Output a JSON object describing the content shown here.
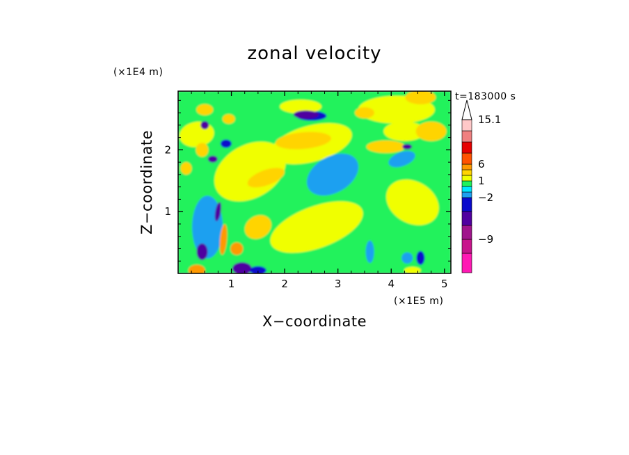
{
  "chart_data": {
    "type": "heatmap",
    "title": "zonal velocity",
    "xlabel": "X−coordinate",
    "ylabel": "Z−coordinate",
    "x_unit": "(×1E5 m)",
    "y_unit": "(×1E4 m)",
    "time_label": "t=183000 s",
    "xlim": [
      0,
      5.12
    ],
    "ylim": [
      0,
      2.95
    ],
    "x_ticks": [
      "1",
      "2",
      "3",
      "4",
      "5"
    ],
    "y_ticks": [
      "1",
      "2"
    ],
    "colorbar": {
      "levels": [
        -15,
        -12,
        -9,
        -6,
        -3,
        -2,
        -1,
        0,
        1,
        2,
        3,
        6,
        9,
        12,
        15.1
      ],
      "colors": [
        "#ff19b4",
        "#c8148c",
        "#a0148c",
        "#5000a0",
        "#0a0acc",
        "#1ea0f0",
        "#00e6ff",
        "#20f25c",
        "#f0ff00",
        "#ffd400",
        "#ff9900",
        "#ff5200",
        "#e60000",
        "#f08080",
        "#ffc8c8"
      ],
      "extend": "max",
      "tick_labels": [
        "15.1",
        "6",
        "1",
        "−2",
        "−9"
      ],
      "tick_values": [
        15.1,
        6,
        1,
        -2,
        -9
      ]
    },
    "background_level": 0,
    "features": [
      {
        "x": 3.5,
        "z": 0.6,
        "value": 0.5
      },
      {
        "x": 1.35,
        "z": 1.65,
        "value": 1.5
      },
      {
        "x": 2.6,
        "z": 0.75,
        "value": 1.5
      },
      {
        "x": 2.5,
        "z": 2.1,
        "value": 1.5
      },
      {
        "x": 4.4,
        "z": 1.15,
        "value": 1.5
      },
      {
        "x": 4.1,
        "z": 2.65,
        "value": 1.5
      },
      {
        "x": 0.55,
        "z": 0.75,
        "value": -1.5
      },
      {
        "x": 0.35,
        "z": 2.25,
        "value": 1.5
      },
      {
        "x": 2.9,
        "z": 1.6,
        "value": -1.5
      },
      {
        "x": 4.25,
        "z": 2.3,
        "value": 1.5
      },
      {
        "x": 2.5,
        "z": 2.55,
        "value": -2.5
      },
      {
        "x": 2.3,
        "z": 2.7,
        "value": 1.5
      },
      {
        "x": 2.35,
        "z": 2.15,
        "value": 2.5
      },
      {
        "x": 3.9,
        "z": 2.05,
        "value": 2.5
      },
      {
        "x": 4.2,
        "z": 1.85,
        "value": -1.5
      },
      {
        "x": 4.75,
        "z": 2.3,
        "value": 2.5
      },
      {
        "x": 4.55,
        "z": 2.85,
        "value": 2.5
      },
      {
        "x": 0.5,
        "z": 2.65,
        "value": 2.5
      },
      {
        "x": 0.95,
        "z": 2.5,
        "value": 2.5
      },
      {
        "x": 0.5,
        "z": 2.4,
        "value": -4.5
      },
      {
        "x": 0.65,
        "z": 1.85,
        "value": -4.5
      },
      {
        "x": 0.9,
        "z": 2.1,
        "value": -2.5
      },
      {
        "x": 0.45,
        "z": 2.0,
        "value": 2.5
      },
      {
        "x": 0.15,
        "z": 1.7,
        "value": 2.5
      },
      {
        "x": 2.4,
        "z": 2.57,
        "value": -4.5
      },
      {
        "x": 3.5,
        "z": 2.6,
        "value": 2.5
      },
      {
        "x": 4.3,
        "z": 2.05,
        "value": -4.5
      },
      {
        "x": 1.65,
        "z": 1.55,
        "value": 2.5
      },
      {
        "x": 1.5,
        "z": 0.75,
        "value": 2.5
      },
      {
        "x": 0.45,
        "z": 0.35,
        "value": -4.5
      },
      {
        "x": 0.75,
        "z": 1.0,
        "value": -4.5
      },
      {
        "x": 0.85,
        "z": 0.55,
        "value": 4.5
      },
      {
        "x": 1.1,
        "z": 0.4,
        "value": 4.5
      },
      {
        "x": 0.35,
        "z": 0.05,
        "value": 4.5
      },
      {
        "x": 1.2,
        "z": 0.08,
        "value": -4.5
      },
      {
        "x": 1.5,
        "z": 0.05,
        "value": -2.5
      },
      {
        "x": 4.3,
        "z": 0.25,
        "value": -1.5
      },
      {
        "x": 4.4,
        "z": 0.05,
        "value": 1.5
      },
      {
        "x": 3.6,
        "z": 0.35,
        "value": -1.5
      },
      {
        "x": 4.55,
        "z": 0.25,
        "value": -2.5
      }
    ]
  }
}
